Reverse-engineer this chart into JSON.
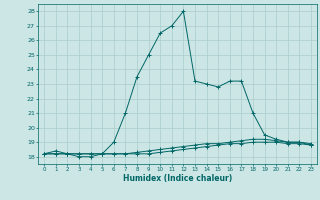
{
  "title": "",
  "xlabel": "Humidex (Indice chaleur)",
  "ylabel": "",
  "background_color": "#cce5e5",
  "grid_color": "#aacccc",
  "line_color": "#006666",
  "xlim": [
    -0.5,
    23.5
  ],
  "ylim": [
    17.5,
    28.5
  ],
  "yticks": [
    18,
    19,
    20,
    21,
    22,
    23,
    24,
    25,
    26,
    27,
    28
  ],
  "xticks": [
    0,
    1,
    2,
    3,
    4,
    5,
    6,
    7,
    8,
    9,
    10,
    11,
    12,
    13,
    14,
    15,
    16,
    17,
    18,
    19,
    20,
    21,
    22,
    23
  ],
  "series": [
    {
      "x": [
        0,
        1,
        2,
        3,
        4,
        5,
        6,
        7,
        8,
        9,
        10,
        11,
        12,
        13,
        14,
        15,
        16,
        17,
        18,
        19,
        20,
        21,
        22,
        23
      ],
      "y": [
        18.2,
        18.4,
        18.2,
        18.0,
        18.0,
        18.2,
        19.0,
        21.0,
        23.5,
        25.0,
        26.5,
        27.0,
        28.0,
        23.2,
        23.0,
        22.8,
        23.2,
        23.2,
        21.0,
        19.5,
        19.2,
        19.0,
        19.0,
        18.8
      ]
    },
    {
      "x": [
        0,
        1,
        2,
        3,
        4,
        5,
        6,
        7,
        8,
        9,
        10,
        11,
        12,
        13,
        14,
        15,
        16,
        17,
        18,
        19,
        20,
        21,
        22,
        23
      ],
      "y": [
        18.2,
        18.2,
        18.2,
        18.2,
        18.2,
        18.2,
        18.2,
        18.2,
        18.3,
        18.4,
        18.5,
        18.6,
        18.7,
        18.8,
        18.9,
        18.9,
        19.0,
        19.1,
        19.2,
        19.2,
        19.1,
        19.0,
        19.0,
        18.9
      ]
    },
    {
      "x": [
        0,
        1,
        2,
        3,
        4,
        5,
        6,
        7,
        8,
        9,
        10,
        11,
        12,
        13,
        14,
        15,
        16,
        17,
        18,
        19,
        20,
        21,
        22,
        23
      ],
      "y": [
        18.2,
        18.2,
        18.2,
        18.2,
        18.2,
        18.2,
        18.2,
        18.2,
        18.2,
        18.2,
        18.3,
        18.4,
        18.5,
        18.6,
        18.7,
        18.8,
        18.9,
        18.9,
        19.0,
        19.0,
        19.0,
        18.9,
        18.9,
        18.8
      ]
    }
  ]
}
